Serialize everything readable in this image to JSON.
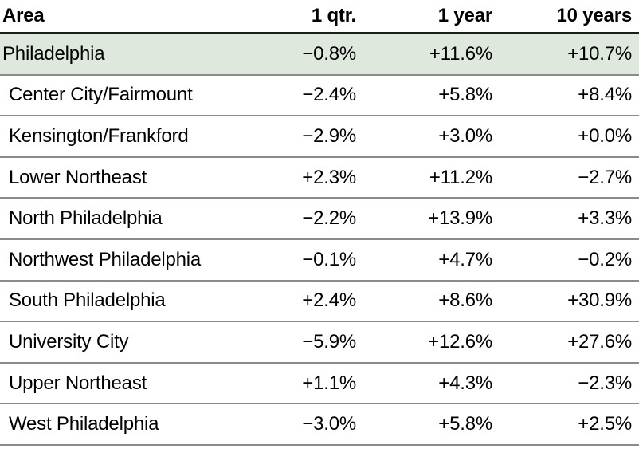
{
  "colors": {
    "highlight_row_bg": "#dfe8dd",
    "header_rule": "#1c1c1c",
    "row_rule": "#8b8b8b",
    "text": "#000000"
  },
  "table": {
    "columns": [
      "Area",
      "1 qtr.",
      "1 year",
      "10 years"
    ],
    "rows": [
      {
        "area": "Philadelphia",
        "qtr": "−0.8%",
        "year": "+11.6%",
        "ten_years": "+10.7%"
      },
      {
        "area": "Center City/Fairmount",
        "qtr": "−2.4%",
        "year": "+5.8%",
        "ten_years": "+8.4%"
      },
      {
        "area": "Kensington/Frankford",
        "qtr": "−2.9%",
        "year": "+3.0%",
        "ten_years": "+0.0%"
      },
      {
        "area": "Lower Northeast",
        "qtr": "+2.3%",
        "year": "+11.2%",
        "ten_years": "−2.7%"
      },
      {
        "area": "North Philadelphia",
        "qtr": "−2.2%",
        "year": "+13.9%",
        "ten_years": "+3.3%"
      },
      {
        "area": "Northwest Philadelphia",
        "qtr": "−0.1%",
        "year": "+4.7%",
        "ten_years": "−0.2%"
      },
      {
        "area": "South Philadelphia",
        "qtr": "+2.4%",
        "year": "+8.6%",
        "ten_years": "+30.9%"
      },
      {
        "area": "University City",
        "qtr": "−5.9%",
        "year": "+12.6%",
        "ten_years": "+27.6%"
      },
      {
        "area": "Upper Northeast",
        "qtr": "+1.1%",
        "year": "+4.3%",
        "ten_years": "−2.3%"
      },
      {
        "area": "West Philadelphia",
        "qtr": "−3.0%",
        "year": "+5.8%",
        "ten_years": "+2.5%"
      }
    ]
  },
  "chart_data": {
    "type": "table",
    "columns": [
      "Area",
      "1 qtr.",
      "1 year",
      "10 years"
    ],
    "units": "percent change",
    "highlighted_row": "Philadelphia",
    "rows": [
      [
        "Philadelphia",
        -0.8,
        11.6,
        10.7
      ],
      [
        "Center City/Fairmount",
        -2.4,
        5.8,
        8.4
      ],
      [
        "Kensington/Frankford",
        -2.9,
        3.0,
        0.0
      ],
      [
        "Lower Northeast",
        2.3,
        11.2,
        -2.7
      ],
      [
        "North Philadelphia",
        -2.2,
        13.9,
        3.3
      ],
      [
        "Northwest Philadelphia",
        -0.1,
        4.7,
        -0.2
      ],
      [
        "South Philadelphia",
        2.4,
        8.6,
        30.9
      ],
      [
        "University City",
        -5.9,
        12.6,
        27.6
      ],
      [
        "Upper Northeast",
        1.1,
        4.3,
        -2.3
      ],
      [
        "West Philadelphia",
        -3.0,
        5.8,
        2.5
      ]
    ]
  }
}
